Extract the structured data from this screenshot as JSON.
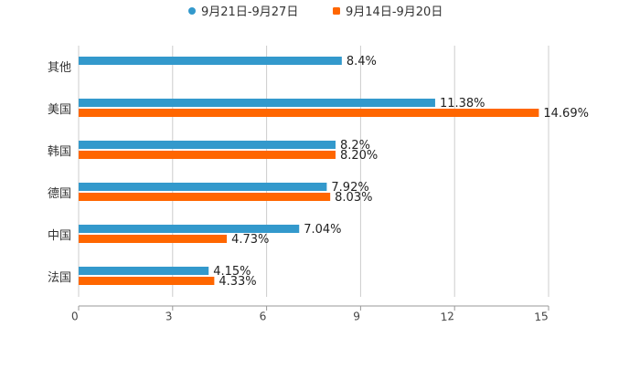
{
  "chart_data": {
    "type": "bar",
    "orientation": "horizontal",
    "title": "",
    "categories": [
      "其他",
      "美国",
      "韩国",
      "德国",
      "中国",
      "法国"
    ],
    "series": [
      {
        "name": "9月21日-9月27日",
        "color": "#3399cc",
        "values": [
          8.4,
          11.38,
          8.2,
          7.92,
          7.04,
          4.15
        ],
        "labels": [
          "8.4%",
          "11.38%",
          "8.2%",
          "7.92%",
          "7.04%",
          "4.15%"
        ]
      },
      {
        "name": "9月14日-9月20日",
        "color": "#ff6600",
        "values": [
          null,
          14.69,
          8.2,
          8.03,
          4.73,
          4.33
        ],
        "labels": [
          null,
          "14.69%",
          "8.20%",
          "8.03%",
          "4.73%",
          "4.33%"
        ]
      }
    ],
    "xlim": [
      0,
      15
    ],
    "xticks": [
      "0",
      "3",
      "6",
      "9",
      "12",
      "15"
    ],
    "xlabel": "",
    "ylabel": "",
    "grid": true,
    "legend": "top-center"
  }
}
